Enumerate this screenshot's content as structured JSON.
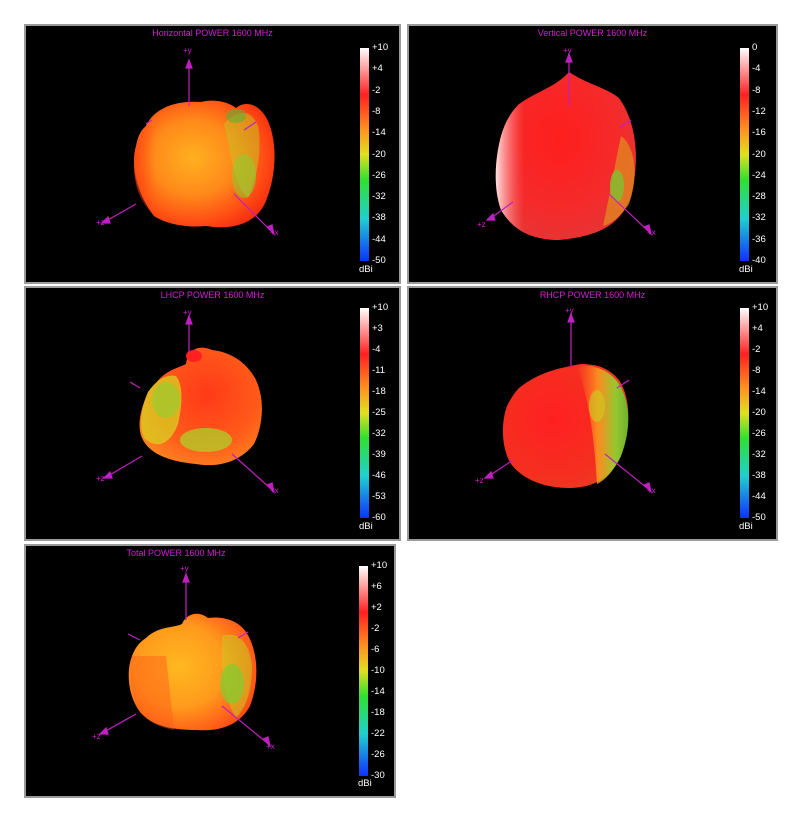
{
  "chart_data": [
    {
      "type": "3d-radiation-pattern",
      "title": "Horizontal POWER 1600  MHz",
      "colorbar": {
        "unit": "dBi",
        "ticks": [
          "+10",
          "+4",
          "-2",
          "-8",
          "-14",
          "-20",
          "-26",
          "-32",
          "-38",
          "-44",
          "-50"
        ],
        "range": [
          -50,
          10
        ]
      },
      "axes": {
        "y": "+y",
        "z": "+z",
        "x": "+x"
      }
    },
    {
      "type": "3d-radiation-pattern",
      "title": "Vertical POWER 1600  MHz",
      "colorbar": {
        "unit": "dBi",
        "ticks": [
          "0",
          "-4",
          "-8",
          "-12",
          "-16",
          "-20",
          "-24",
          "-28",
          "-32",
          "-36",
          "-40"
        ],
        "range": [
          -40,
          0
        ]
      },
      "axes": {
        "y": "+y",
        "z": "+z",
        "x": "+x"
      }
    },
    {
      "type": "3d-radiation-pattern",
      "title": "LHCP POWER 1600  MHz",
      "colorbar": {
        "unit": "dBi",
        "ticks": [
          "+10",
          "+3",
          "-4",
          "-11",
          "-18",
          "-25",
          "-32",
          "-39",
          "-46",
          "-53",
          "-60"
        ],
        "range": [
          -60,
          10
        ]
      },
      "axes": {
        "y": "+y",
        "z": "+z",
        "x": "+x"
      }
    },
    {
      "type": "3d-radiation-pattern",
      "title": "RHCP POWER 1600  MHz",
      "colorbar": {
        "unit": "dBi",
        "ticks": [
          "+10",
          "+4",
          "-2",
          "-8",
          "-14",
          "-20",
          "-26",
          "-32",
          "-38",
          "-44",
          "-50"
        ],
        "range": [
          -50,
          10
        ]
      },
      "axes": {
        "y": "+y",
        "z": "+z",
        "x": "+x"
      }
    },
    {
      "type": "3d-radiation-pattern",
      "title": "Total POWER 1600  MHz",
      "colorbar": {
        "unit": "dBi",
        "ticks": [
          "+10",
          "+6",
          "+2",
          "-2",
          "-6",
          "-10",
          "-14",
          "-18",
          "-22",
          "-26",
          "-30"
        ],
        "range": [
          -30,
          10
        ]
      },
      "axes": {
        "y": "+y",
        "z": "+z",
        "x": "+x"
      }
    }
  ],
  "colors": {
    "axis": "#c020c0",
    "title": "#d21fd2",
    "panel_bg": "#000000",
    "panel_border": "#9a9a9a"
  }
}
